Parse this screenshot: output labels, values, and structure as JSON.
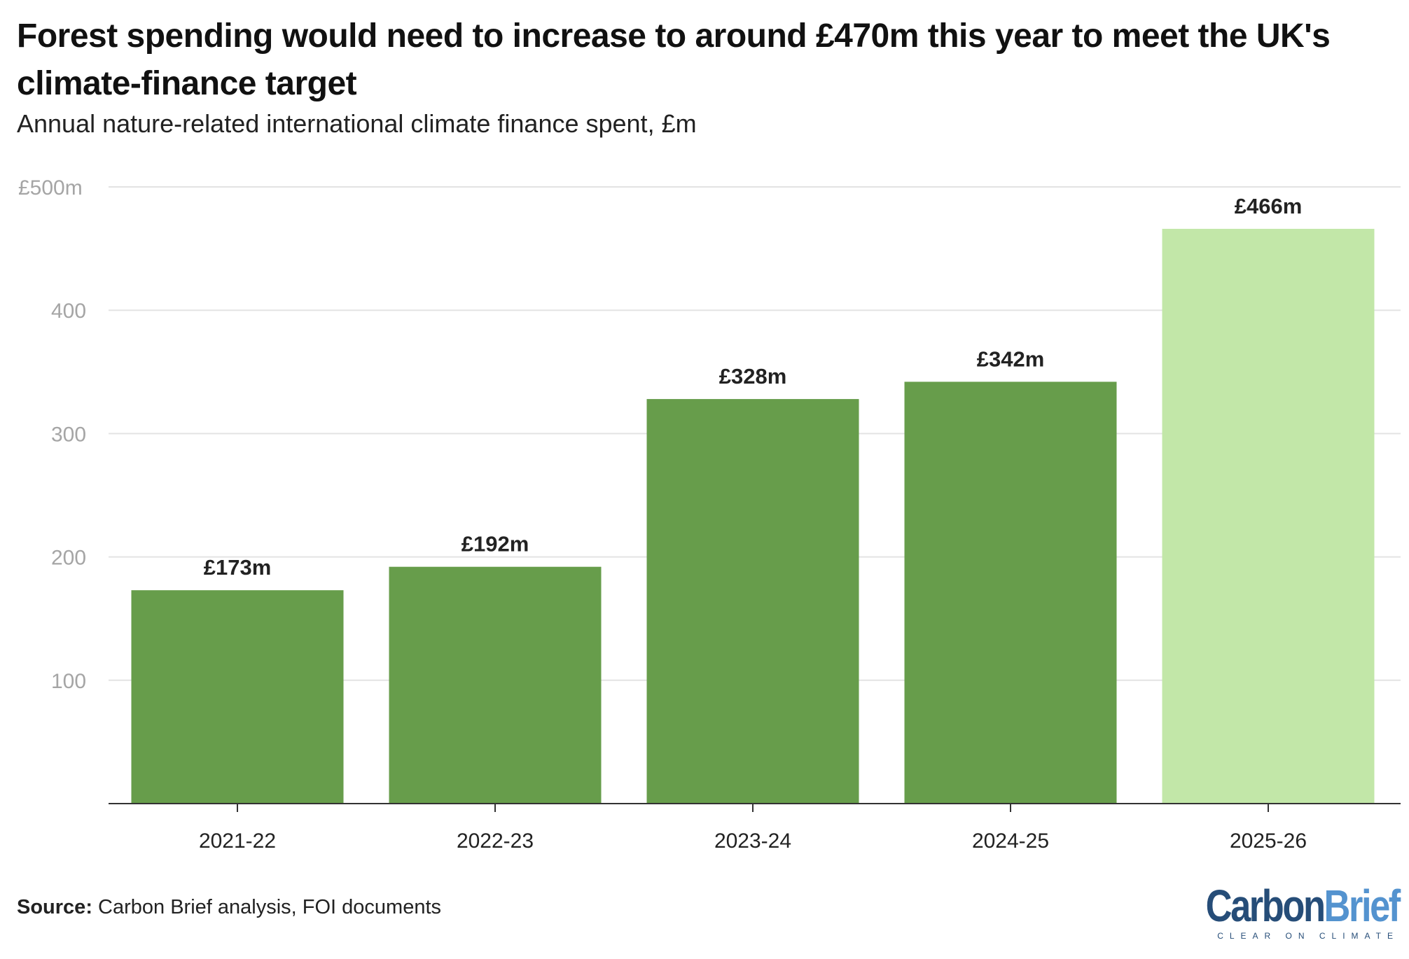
{
  "title": "Forest spending would need to increase to around £470m this year to meet the UK's climate-finance target",
  "subtitle": "Annual nature-related international climate finance spent, £m",
  "source_label": "Source:",
  "source_text": "Carbon Brief analysis, FOI documents",
  "logo": {
    "word1": "Carbon",
    "word2": "Brief",
    "tagline": "CLEAR ON CLIMATE"
  },
  "chart_data": {
    "type": "bar",
    "categories": [
      "2021-22",
      "2022-23",
      "2023-24",
      "2024-25",
      "2025-26"
    ],
    "values": [
      173,
      192,
      328,
      342,
      466
    ],
    "data_labels": [
      "£173m",
      "£192m",
      "£328m",
      "£342m",
      "£466m"
    ],
    "colors": [
      "#679d4b",
      "#679d4b",
      "#679d4b",
      "#679d4b",
      "#c2e7a8"
    ],
    "yticks": [
      100,
      200,
      300,
      400,
      500
    ],
    "ytick_labels": [
      "100",
      "200",
      "300",
      "400",
      "£500m"
    ],
    "ylim": [
      0,
      500
    ],
    "grid": true
  }
}
